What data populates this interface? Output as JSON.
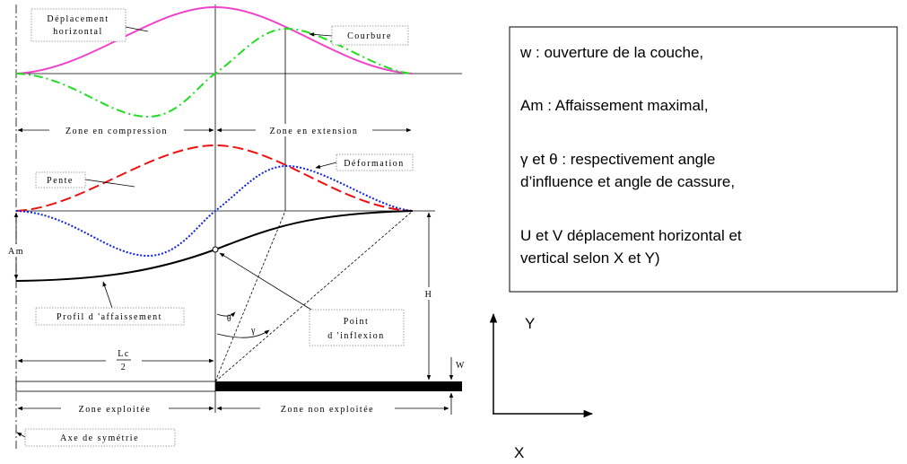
{
  "labels": {
    "horizontal_displacement": [
      "Déplacement",
      "horizontal"
    ],
    "curvature": "Courbure",
    "compression_zone": "Zone en compression",
    "extension_zone": "Zone en extension",
    "slope": "Pente",
    "deformation": "Déformation",
    "subsidence_max": "Am",
    "subsidence_profile": "Profil d 'affaissement",
    "inflection_point": [
      "Point",
      "d 'inflexion"
    ],
    "theta": "θ",
    "gamma": "γ",
    "depth": "H",
    "half_length": [
      "Lc",
      "2"
    ],
    "opening": "W",
    "mined_zone": "Zone exploitée",
    "unmined_zone": "Zone non exploitée",
    "symmetry_axis": "Axe de symétrie"
  },
  "legend": [
    "w : ouverture de la couche,",
    "Am : Affaissement maximal,",
    "γ et θ : respectivement angle",
    "d’influence et angle de cassure,",
    "U et V déplacement horizontal et",
    "vertical selon X et Y)"
  ],
  "axes": {
    "y": "Y",
    "x": "X"
  }
}
